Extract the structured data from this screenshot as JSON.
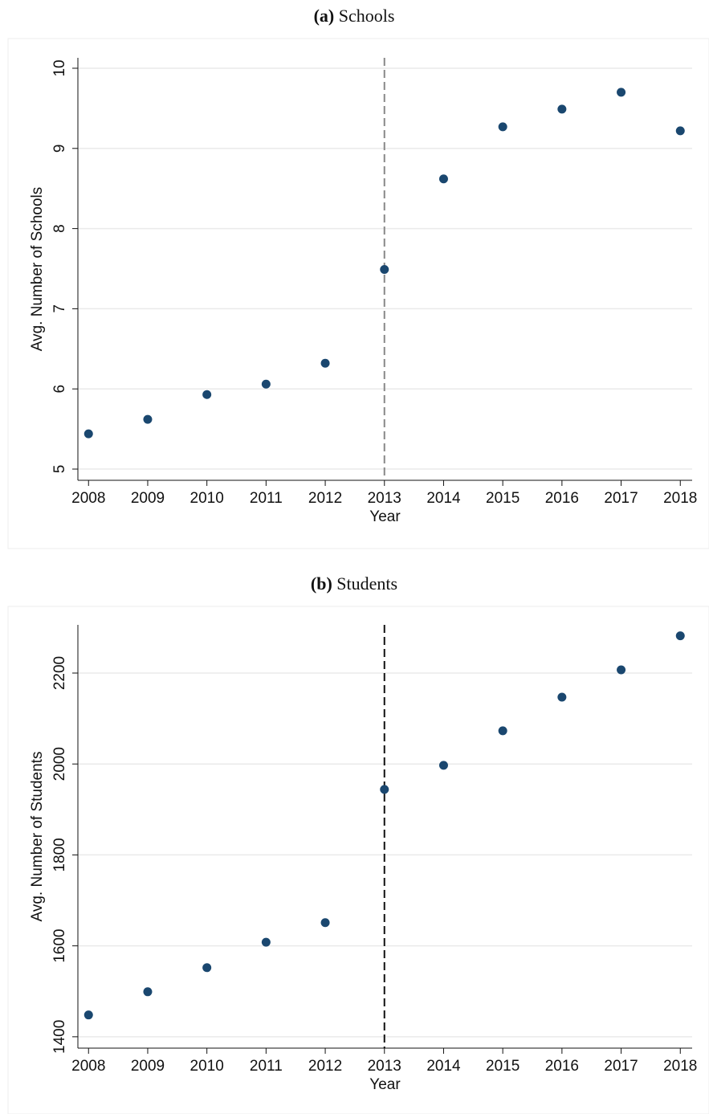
{
  "chart_data": [
    {
      "type": "scatter",
      "panel_label": "(a)",
      "title": "Schools",
      "x_label": "Year",
      "y_label": "Avg. Number of Schools",
      "x": [
        2008,
        2009,
        2010,
        2011,
        2012,
        2013,
        2014,
        2015,
        2016,
        2017,
        2018
      ],
      "series": [
        {
          "name": "Avg. Number of Schools",
          "color": "#1a476f",
          "values": [
            5.44,
            5.62,
            5.93,
            6.06,
            6.32,
            7.49,
            8.62,
            9.27,
            9.49,
            9.7,
            9.22
          ]
        }
      ],
      "xlim": [
        2007.82,
        2018.2
      ],
      "xticks": [
        2008,
        2009,
        2010,
        2011,
        2012,
        2013,
        2014,
        2015,
        2016,
        2017,
        2018
      ],
      "ylim": [
        4.86,
        10.13
      ],
      "yticks": [
        5,
        6,
        7,
        8,
        9,
        10
      ],
      "grid": true,
      "vline": 2013,
      "vline_color": "#888888"
    },
    {
      "type": "scatter",
      "panel_label": "(b)",
      "title": "Students",
      "x_label": "Year",
      "y_label": "Avg. Number of Students",
      "x": [
        2008,
        2009,
        2010,
        2011,
        2012,
        2013,
        2014,
        2015,
        2016,
        2017,
        2018
      ],
      "series": [
        {
          "name": "Avg. Number of Students",
          "color": "#1a476f",
          "values": [
            1448,
            1499,
            1552,
            1608,
            1651,
            1944,
            1997,
            2073,
            2147,
            2207,
            2282
          ]
        }
      ],
      "xlim": [
        2007.82,
        2018.2
      ],
      "xticks": [
        2008,
        2009,
        2010,
        2011,
        2012,
        2013,
        2014,
        2015,
        2016,
        2017,
        2018
      ],
      "ylim": [
        1375,
        2306
      ],
      "yticks": [
        1400,
        1600,
        1800,
        2000,
        2200
      ],
      "grid": true,
      "vline": 2013,
      "vline_color": "#111111"
    }
  ]
}
